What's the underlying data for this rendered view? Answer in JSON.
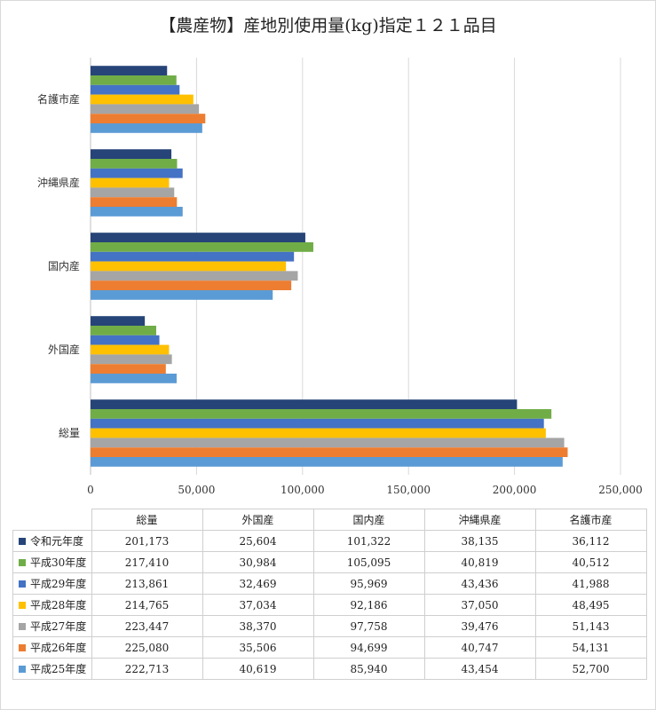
{
  "chart_data": {
    "type": "bar",
    "orientation": "horizontal",
    "title": "【農産物】産地別使用量(kg)指定１２１品目",
    "categories": [
      "総量",
      "外国産",
      "国内産",
      "沖縄県産",
      "名護市産"
    ],
    "series": [
      {
        "name": "令和元年度",
        "color": "#264478",
        "values": [
          201173,
          25604,
          101322,
          38135,
          36112
        ],
        "labels": [
          "201,173",
          "25,604",
          "101,322",
          "38,135",
          "36,112"
        ]
      },
      {
        "name": "平成30年度",
        "color": "#70AD47",
        "values": [
          217410,
          30984,
          105095,
          40819,
          40512
        ],
        "labels": [
          "217,410",
          "30,984",
          "105,095",
          "40,819",
          "40,512"
        ]
      },
      {
        "name": "平成29年度",
        "color": "#4472C4",
        "values": [
          213861,
          32469,
          95969,
          43436,
          41988
        ],
        "labels": [
          "213,861",
          "32,469",
          "95,969",
          "43,436",
          "41,988"
        ]
      },
      {
        "name": "平成28年度",
        "color": "#FFC000",
        "values": [
          214765,
          37034,
          92186,
          37050,
          48495
        ],
        "labels": [
          "214,765",
          "37,034",
          "92,186",
          "37,050",
          "48,495"
        ]
      },
      {
        "name": "平成27年度",
        "color": "#A5A5A5",
        "values": [
          223447,
          38370,
          97758,
          39476,
          51143
        ],
        "labels": [
          "223,447",
          "38,370",
          "97,758",
          "39,476",
          "51,143"
        ]
      },
      {
        "name": "平成26年度",
        "color": "#ED7D31",
        "values": [
          225080,
          35506,
          94699,
          40747,
          54131
        ],
        "labels": [
          "225,080",
          "35,506",
          "94,699",
          "40,747",
          "54,131"
        ]
      },
      {
        "name": "平成25年度",
        "color": "#5B9BD5",
        "values": [
          222713,
          40619,
          85940,
          43454,
          52700
        ],
        "labels": [
          "222,713",
          "40,619",
          "85,940",
          "43,454",
          "52,700"
        ]
      }
    ],
    "xlim": [
      0,
      250000
    ],
    "xticks": [
      0,
      50000,
      100000,
      150000,
      200000,
      250000
    ],
    "xtick_labels": [
      "0",
      "50,000",
      "100,000",
      "150,000",
      "200,000",
      "250,000"
    ],
    "grid": true,
    "legend": "data-table-below"
  }
}
